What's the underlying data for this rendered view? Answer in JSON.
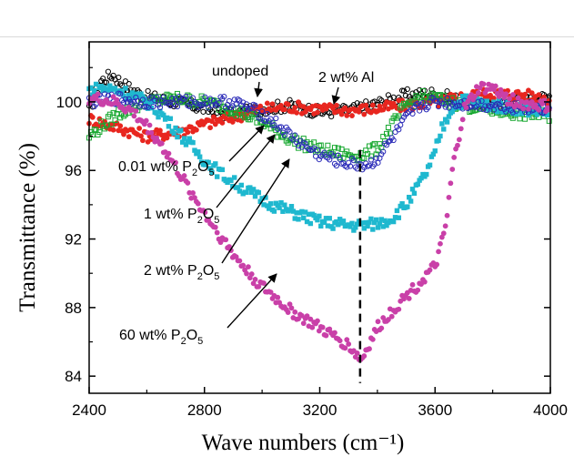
{
  "chart_data": {
    "type": "scatter",
    "title": "",
    "xlabel": "Wave numbers (cm⁻¹)",
    "ylabel": "Transmittance (%)",
    "xlim": [
      2400,
      4000
    ],
    "ylim": [
      83,
      103.5
    ],
    "xticks": [
      2400,
      2800,
      3200,
      3600,
      4000
    ],
    "yticks": [
      84,
      88,
      92,
      96,
      100
    ],
    "xtick_labels": [
      "2400",
      "2800",
      "3200",
      "3600",
      "4000"
    ],
    "ytick_labels": [
      "84",
      "88",
      "92",
      "96",
      "100"
    ],
    "grid": false,
    "legend": "none",
    "reference_line": {
      "x": 3340,
      "style": "dashed"
    },
    "series": [
      {
        "name": "undoped",
        "color": "#000000",
        "marker": "open-circle",
        "x": [
          2400,
          2440,
          2480,
          2520,
          2560,
          2600,
          2700,
          2800,
          2900,
          3000,
          3100,
          3200,
          3300,
          3400,
          3500,
          3600,
          3700,
          3800,
          3900,
          4000
        ],
        "y": [
          99.5,
          101.2,
          101.6,
          101.0,
          100.6,
          100.3,
          100.0,
          99.6,
          99.2,
          99.6,
          99.8,
          99.4,
          99.5,
          99.9,
          100.4,
          100.5,
          100.0,
          99.8,
          100.2,
          100.3
        ]
      },
      {
        "name": "2 wt% Al",
        "color": "#e8261f",
        "marker": "filled-circle",
        "x": [
          2400,
          2500,
          2600,
          2700,
          2800,
          2900,
          3000,
          3100,
          3200,
          3300,
          3400,
          3500,
          3600,
          3700,
          3800,
          3900,
          4000
        ],
        "y": [
          99.0,
          98.5,
          98.0,
          98.2,
          98.7,
          99.1,
          99.6,
          99.7,
          99.6,
          99.5,
          99.6,
          99.8,
          100.0,
          100.3,
          100.5,
          100.4,
          100.2
        ]
      },
      {
        "name": "0.01 wt% P2O5",
        "color": "#18a830",
        "marker": "open-square",
        "x": [
          2400,
          2500,
          2600,
          2700,
          2800,
          2900,
          3000,
          3100,
          3200,
          3300,
          3350,
          3400,
          3450,
          3500,
          3550,
          3600,
          3700,
          3800,
          3900,
          4000
        ],
        "y": [
          98.0,
          99.3,
          100.0,
          100.2,
          100.0,
          99.6,
          98.8,
          97.8,
          97.2,
          96.9,
          96.9,
          97.3,
          98.6,
          99.8,
          100.3,
          100.2,
          99.8,
          99.5,
          99.3,
          99.2
        ]
      },
      {
        "name": "1 wt% P2O5",
        "color": "#1fb8cf",
        "marker": "filled-square",
        "x": [
          2400,
          2450,
          2500,
          2550,
          2600,
          2650,
          2700,
          2750,
          2800,
          2850,
          2900,
          2950,
          3000,
          3050,
          3100,
          3150,
          3200,
          3250,
          3300,
          3350,
          3400,
          3450,
          3500,
          3550,
          3580,
          3600,
          3620,
          3660,
          3700,
          3800,
          3900,
          4000
        ],
        "y": [
          100.7,
          100.8,
          100.7,
          100.4,
          100.0,
          99.3,
          98.4,
          97.5,
          96.6,
          95.9,
          95.3,
          94.8,
          94.3,
          93.9,
          93.6,
          93.3,
          93.0,
          92.9,
          92.8,
          92.8,
          92.9,
          93.2,
          94.0,
          95.3,
          96.2,
          97.0,
          98.3,
          99.7,
          100.1,
          99.8,
          99.6,
          99.4
        ]
      },
      {
        "name": "2 wt% P2O5",
        "color": "#2a2ab8",
        "marker": "open-circle",
        "x": [
          2400,
          2500,
          2600,
          2700,
          2800,
          2900,
          3000,
          3050,
          3100,
          3150,
          3200,
          3250,
          3300,
          3350,
          3380,
          3400,
          3450,
          3500,
          3550,
          3600,
          3700,
          3800,
          3900,
          4000
        ],
        "y": [
          100.0,
          100.2,
          100.0,
          100.0,
          100.0,
          100.0,
          99.3,
          98.7,
          98.0,
          97.4,
          96.9,
          96.6,
          96.4,
          96.3,
          96.4,
          96.7,
          97.8,
          99.0,
          99.8,
          100.0,
          99.9,
          99.8,
          99.7,
          99.6
        ]
      },
      {
        "name": "60 wt% P2O5",
        "color": "#c940a8",
        "marker": "filled-circle",
        "x": [
          2400,
          2450,
          2500,
          2550,
          2600,
          2650,
          2700,
          2750,
          2800,
          2850,
          2900,
          2950,
          3000,
          3050,
          3100,
          3150,
          3200,
          3250,
          3300,
          3330,
          3345,
          3360,
          3400,
          3450,
          3500,
          3550,
          3600,
          3620,
          3640,
          3660,
          3700,
          3750,
          3800,
          3850,
          3900,
          3950,
          4000
        ],
        "y": [
          100.2,
          100.1,
          99.9,
          99.4,
          98.6,
          97.5,
          96.2,
          94.8,
          93.5,
          92.3,
          91.1,
          90.1,
          89.2,
          88.5,
          87.8,
          87.3,
          86.8,
          86.3,
          85.8,
          85.2,
          84.9,
          85.5,
          86.8,
          87.8,
          88.7,
          89.5,
          90.4,
          91.5,
          93.0,
          96.0,
          99.5,
          100.8,
          100.8,
          100.2,
          99.9,
          99.8,
          99.7
        ]
      }
    ],
    "annotations": {
      "undoped": "undoped",
      "al": "2 wt% Al",
      "p001": {
        "pre": "0.01 wt% P",
        "sub1": "2",
        "mid": "O",
        "sub2": "5"
      },
      "p1": {
        "pre": "1 wt% P",
        "sub1": "2",
        "mid": "O",
        "sub2": "5"
      },
      "p2": {
        "pre": "2 wt% P",
        "sub1": "2",
        "mid": "O",
        "sub2": "5"
      },
      "p60": {
        "pre": "60 wt% P",
        "sub1": "2",
        "mid": "O",
        "sub2": "5"
      }
    }
  }
}
